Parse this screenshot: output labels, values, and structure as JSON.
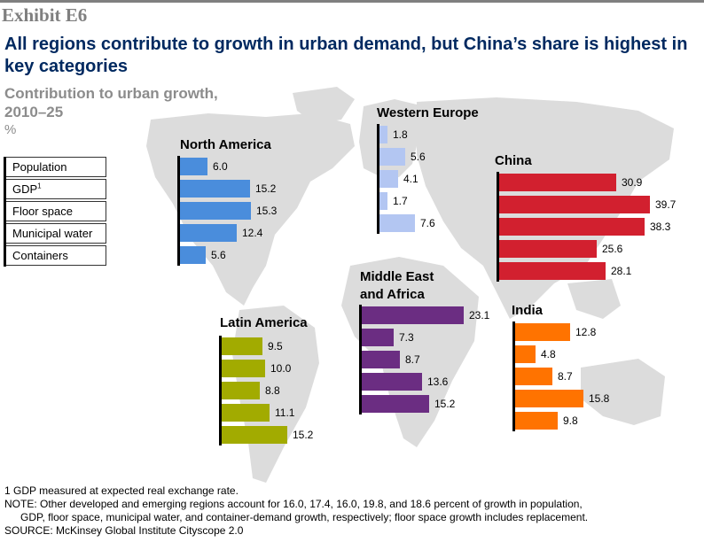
{
  "exhibit": "Exhibit E6",
  "title": "All regions contribute to growth in urban demand, but China’s share is highest in key categories",
  "subtitle_line1": "Contribution to urban growth,",
  "subtitle_line2": "2010–25",
  "unit": "%",
  "legend": {
    "items": [
      "Population",
      "GDP",
      "Floor space",
      "Municipal water",
      "Containers"
    ],
    "gdp_footnote_mark": "1"
  },
  "chart_data": {
    "type": "bar",
    "orientation": "horizontal",
    "title": "Contribution to urban growth, 2010–25",
    "unit": "%",
    "categories": [
      "Population",
      "GDP",
      "Floor space",
      "Municipal water",
      "Containers"
    ],
    "series": [
      {
        "name": "North America",
        "color": "#4a8ddc",
        "values": [
          6.0,
          15.2,
          15.3,
          12.4,
          5.6
        ]
      },
      {
        "name": "Western Europe",
        "color": "#b3c6f2",
        "values": [
          1.8,
          5.6,
          4.1,
          1.7,
          7.6
        ]
      },
      {
        "name": "China",
        "color": "#d2202f",
        "values": [
          30.9,
          39.7,
          38.3,
          25.6,
          28.1
        ]
      },
      {
        "name": "Middle East and Africa",
        "color": "#6b2d82",
        "values": [
          23.1,
          7.3,
          8.7,
          13.6,
          15.2
        ]
      },
      {
        "name": "Latin America",
        "color": "#a2ab00",
        "values": [
          9.5,
          10.0,
          8.8,
          11.1,
          15.2
        ]
      },
      {
        "name": "India",
        "color": "#ff7300",
        "values": [
          12.8,
          4.8,
          8.7,
          15.8,
          9.8
        ]
      }
    ]
  },
  "region_labels": {
    "north_america": "North America",
    "western_europe": "Western Europe",
    "china": "China",
    "mea_line1": "Middle East",
    "mea_line2": "and Africa",
    "latin_america": "Latin America",
    "india": "India"
  },
  "footnotes": {
    "fn1": "1  GDP measured at expected real exchange rate.",
    "note_line1": "NOTE: Other developed and emerging regions account for 16.0, 17.4, 16.0, 19.8, and 18.6 percent of growth in population,",
    "note_line2": "GDP, floor space, municipal water, and container-demand growth, respectively; floor space growth includes replacement.",
    "source": "SOURCE: McKinsey Global Institute Cityscope 2.0"
  }
}
